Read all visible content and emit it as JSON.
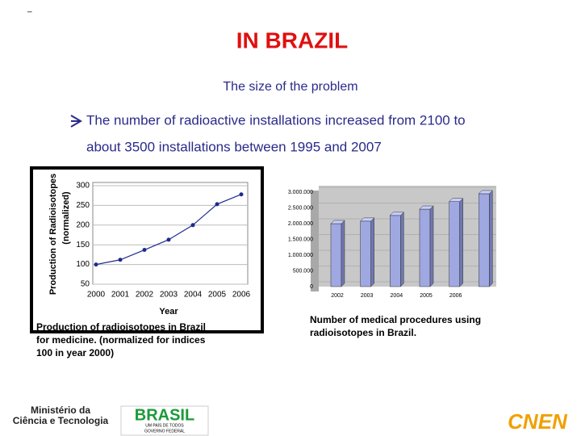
{
  "corner_mark": "–",
  "header": {
    "title": "IN BRAZIL",
    "subtitle": "The size of the problem"
  },
  "bullet": [
    "The  number of radioactive installations increased from 2100 to",
    "about 3500 installations between 1995 and 2007"
  ],
  "chart_data": [
    {
      "type": "line",
      "categories": [
        "2000",
        "2001",
        "2002",
        "2003",
        "2004",
        "2005",
        "2006"
      ],
      "values": [
        100,
        112,
        137,
        163,
        200,
        253,
        278
      ],
      "color": "#1f2a8c",
      "ylim": [
        50,
        300
      ],
      "yticks": [
        50,
        100,
        150,
        200,
        250,
        300
      ],
      "grid": true,
      "ylabel": "Production of Radioisotopes",
      "ylabel2": "(normalized)",
      "xlabel": "Year",
      "caption": [
        "Production of radioisotopes in Brazil",
        "for medicine. (normalized for indices",
        "100 in year 2000)"
      ]
    },
    {
      "type": "bar3d",
      "categories": [
        "2002",
        "2003",
        "2004",
        "2005",
        "2006",
        null
      ],
      "values": [
        2000000,
        2080000,
        2260000,
        2460000,
        2700000,
        2950000
      ],
      "color": "#9fa8e0",
      "ylim": [
        0,
        3000000
      ],
      "yticks": [
        0,
        {
          "value": 500000,
          "label": "500.000"
        },
        {
          "value": 1000000,
          "label": "1.000.000"
        },
        {
          "value": 1500000,
          "label": "1.500.000"
        },
        {
          "value": 2000000,
          "label": "2.000.000"
        },
        {
          "value": 2500000,
          "label": "2.500.000"
        },
        {
          "value": 3000000,
          "label": "3.000.000"
        }
      ],
      "grid": true,
      "caption": [
        "Number of medical procedures using",
        "radioisotopes in Brazil."
      ]
    }
  ],
  "footer": {
    "ministry": [
      "Ministério da",
      "Ciência e Tecnologia"
    ],
    "brasil": "BRASIL",
    "brasil_tag": "UM PAÍS DE TODOS",
    "brasil_gov": "GOVERNO FEDERAL",
    "cnen": "CNEN"
  }
}
